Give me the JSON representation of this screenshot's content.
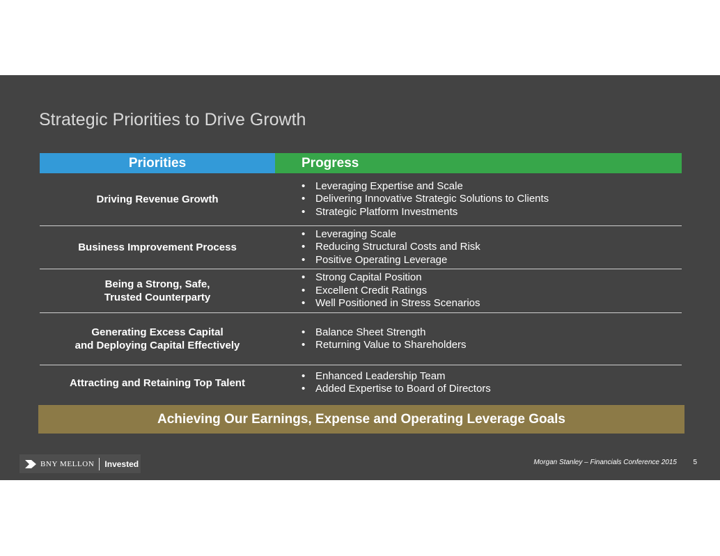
{
  "title": "Strategic Priorities to Drive Growth",
  "table": {
    "header_priorities": "Priorities",
    "header_progress": "Progress",
    "rows": [
      {
        "priority": [
          "Driving Revenue Growth"
        ],
        "progress": [
          "Leveraging Expertise and Scale",
          "Delivering Innovative Strategic Solutions to Clients",
          "Strategic Platform Investments"
        ]
      },
      {
        "priority": [
          "Business Improvement Process"
        ],
        "progress": [
          "Leveraging Scale",
          "Reducing Structural Costs and Risk",
          "Positive Operating Leverage"
        ]
      },
      {
        "priority": [
          "Being a Strong, Safe,",
          "Trusted Counterparty"
        ],
        "progress": [
          "Strong Capital Position",
          "Excellent Credit Ratings",
          "Well Positioned in Stress Scenarios"
        ]
      },
      {
        "priority": [
          "Generating Excess Capital",
          "and Deploying Capital Effectively"
        ],
        "progress": [
          "Balance Sheet Strength",
          "Returning Value to Shareholders"
        ]
      },
      {
        "priority": [
          "Attracting and Retaining Top Talent"
        ],
        "progress": [
          "Enhanced Leadership Team",
          "Added Expertise to Board of Directors"
        ]
      }
    ],
    "bullet_char": "•"
  },
  "banner": "Achieving Our Earnings, Expense and Operating Leverage Goals",
  "footer": {
    "logo_brand": "BNY MELLON",
    "logo_tagline": "Invested",
    "conference": "Morgan Stanley – Financials Conference 2015",
    "page_number": "5"
  },
  "colors": {
    "background": "#434343",
    "priorities_header": "#339ad8",
    "progress_header": "#37a64a",
    "banner": "#8c7a47"
  }
}
